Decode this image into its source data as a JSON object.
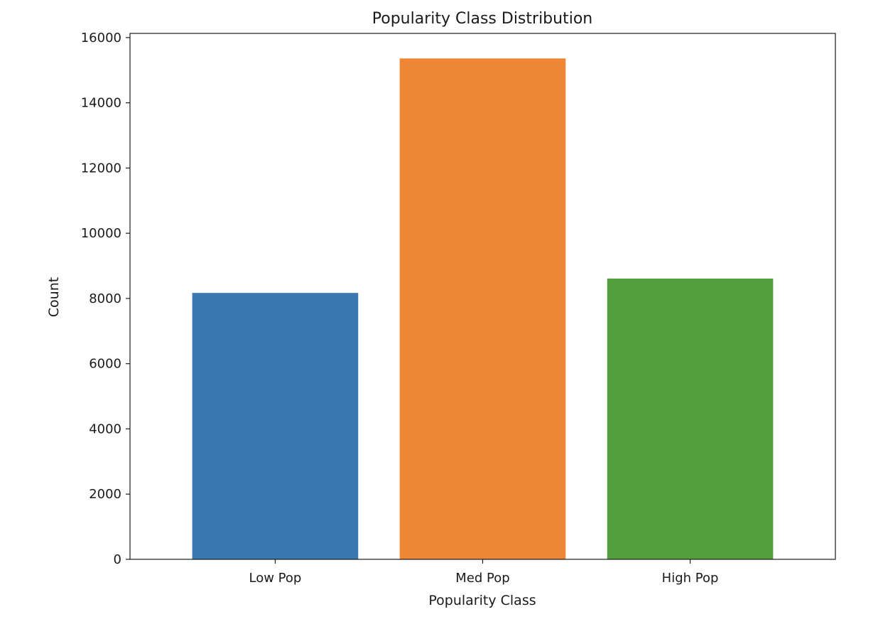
{
  "chart_data": {
    "type": "bar",
    "title": "Popularity Class Distribution",
    "xlabel": "Popularity Class",
    "ylabel": "Count",
    "categories": [
      "Low Pop",
      "Med Pop",
      "High Pop"
    ],
    "values": [
      8170,
      15360,
      8610
    ],
    "colors": [
      "#3a76af",
      "#ef8636",
      "#529e3f"
    ],
    "ylim": [
      0,
      16128
    ],
    "yticks": [
      0,
      2000,
      4000,
      6000,
      8000,
      10000,
      12000,
      14000,
      16000
    ],
    "grid": false,
    "legend": "none"
  }
}
